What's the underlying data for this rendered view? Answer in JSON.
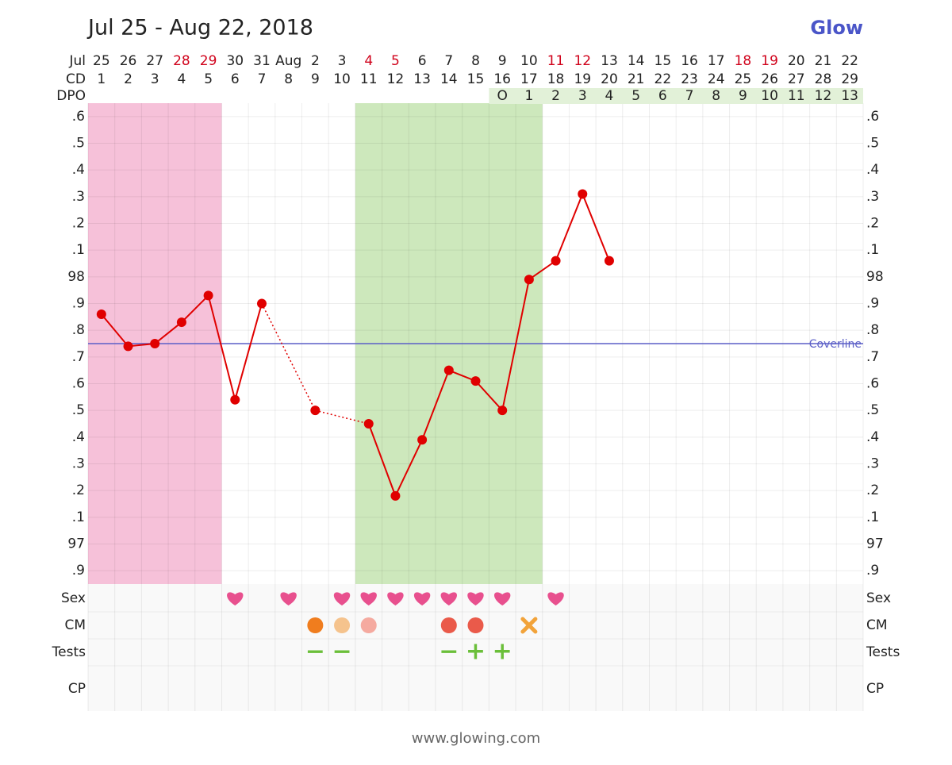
{
  "chart_data": {
    "type": "line",
    "title": "Jul 25 - Aug 22, 2018",
    "brand": "Glow",
    "footer": "www.glowing.com",
    "row_labels": {
      "date": "Jul",
      "cd": "CD",
      "dpo": "DPO",
      "sex": "Sex",
      "cm": "CM",
      "tests": "Tests",
      "cp": "CP"
    },
    "categories": [
      "25",
      "26",
      "27",
      "28",
      "29",
      "30",
      "31",
      "Aug",
      "2",
      "3",
      "4",
      "5",
      "6",
      "7",
      "8",
      "9",
      "10",
      "11",
      "12",
      "13",
      "14",
      "15",
      "16",
      "17",
      "18",
      "19",
      "20",
      "21",
      "22"
    ],
    "weekend_days": [
      3,
      4,
      10,
      11,
      17,
      18,
      24,
      25
    ],
    "weekend_color": "#d0021b",
    "cd": [
      1,
      2,
      3,
      4,
      5,
      6,
      7,
      8,
      9,
      10,
      11,
      12,
      13,
      14,
      15,
      16,
      17,
      18,
      19,
      20,
      21,
      22,
      23,
      24,
      25,
      26,
      27,
      28,
      29
    ],
    "dpo": [
      null,
      null,
      null,
      null,
      null,
      null,
      null,
      null,
      null,
      null,
      null,
      null,
      null,
      null,
      null,
      "O",
      1,
      2,
      3,
      4,
      5,
      6,
      7,
      8,
      9,
      10,
      11,
      12,
      13
    ],
    "series": [
      {
        "name": "Temperature",
        "color": "#e00000",
        "values": [
          97.86,
          97.74,
          97.75,
          97.83,
          97.93,
          97.54,
          97.9,
          null,
          97.5,
          null,
          97.45,
          97.18,
          97.39,
          97.65,
          97.61,
          97.5,
          97.99,
          98.06,
          98.31,
          98.06,
          null,
          null,
          null,
          null,
          null,
          null,
          null,
          null,
          null
        ]
      }
    ],
    "coverline": 97.75,
    "coverline_label": "Coverline",
    "coverline_color": "#5b5fc7",
    "period_days": [
      0,
      4
    ],
    "period_color": "#f6c1d9",
    "fertile_days": [
      10,
      16
    ],
    "fertile_color": "#cde8bc",
    "ylim": [
      96.85,
      98.65
    ],
    "yticks": [
      {
        "value": 96.9,
        "label": ".9"
      },
      97,
      {
        "value": 97.1,
        "label": ".1"
      },
      {
        "value": 97.2,
        "label": ".2"
      },
      {
        "value": 97.3,
        "label": ".3"
      },
      {
        "value": 97.4,
        "label": ".4"
      },
      {
        "value": 97.5,
        "label": ".5"
      },
      {
        "value": 97.6,
        "label": ".6"
      },
      {
        "value": 97.7,
        "label": ".7"
      },
      {
        "value": 97.8,
        "label": ".8"
      },
      {
        "value": 97.9,
        "label": ".9"
      },
      98,
      {
        "value": 98.1,
        "label": ".1"
      },
      {
        "value": 98.2,
        "label": ".2"
      },
      {
        "value": 98.3,
        "label": ".3"
      },
      {
        "value": 98.4,
        "label": ".4"
      },
      {
        "value": 98.5,
        "label": ".5"
      },
      {
        "value": 98.6,
        "label": ".6"
      }
    ],
    "grid": true,
    "sex_days": [
      5,
      7,
      9,
      10,
      11,
      12,
      13,
      14,
      15,
      17
    ],
    "sex_color": "#e8508e",
    "cm": [
      {
        "day": 8,
        "color": "#f07d1e"
      },
      {
        "day": 9,
        "color": "#f5c38d"
      },
      {
        "day": 10,
        "color": "#f5aaa0"
      },
      {
        "day": 13,
        "color": "#ea5a4a"
      },
      {
        "day": 14,
        "color": "#ea5a4a"
      },
      {
        "day": 16,
        "color": "#f2a33a"
      }
    ],
    "tests": [
      null,
      null,
      null,
      null,
      null,
      null,
      null,
      null,
      "−",
      "−",
      null,
      null,
      null,
      "−",
      "+",
      "+",
      null,
      null,
      null,
      null,
      null,
      null,
      null,
      null,
      null,
      null,
      null,
      null,
      null
    ],
    "tests_color": "#6bbf3a"
  }
}
